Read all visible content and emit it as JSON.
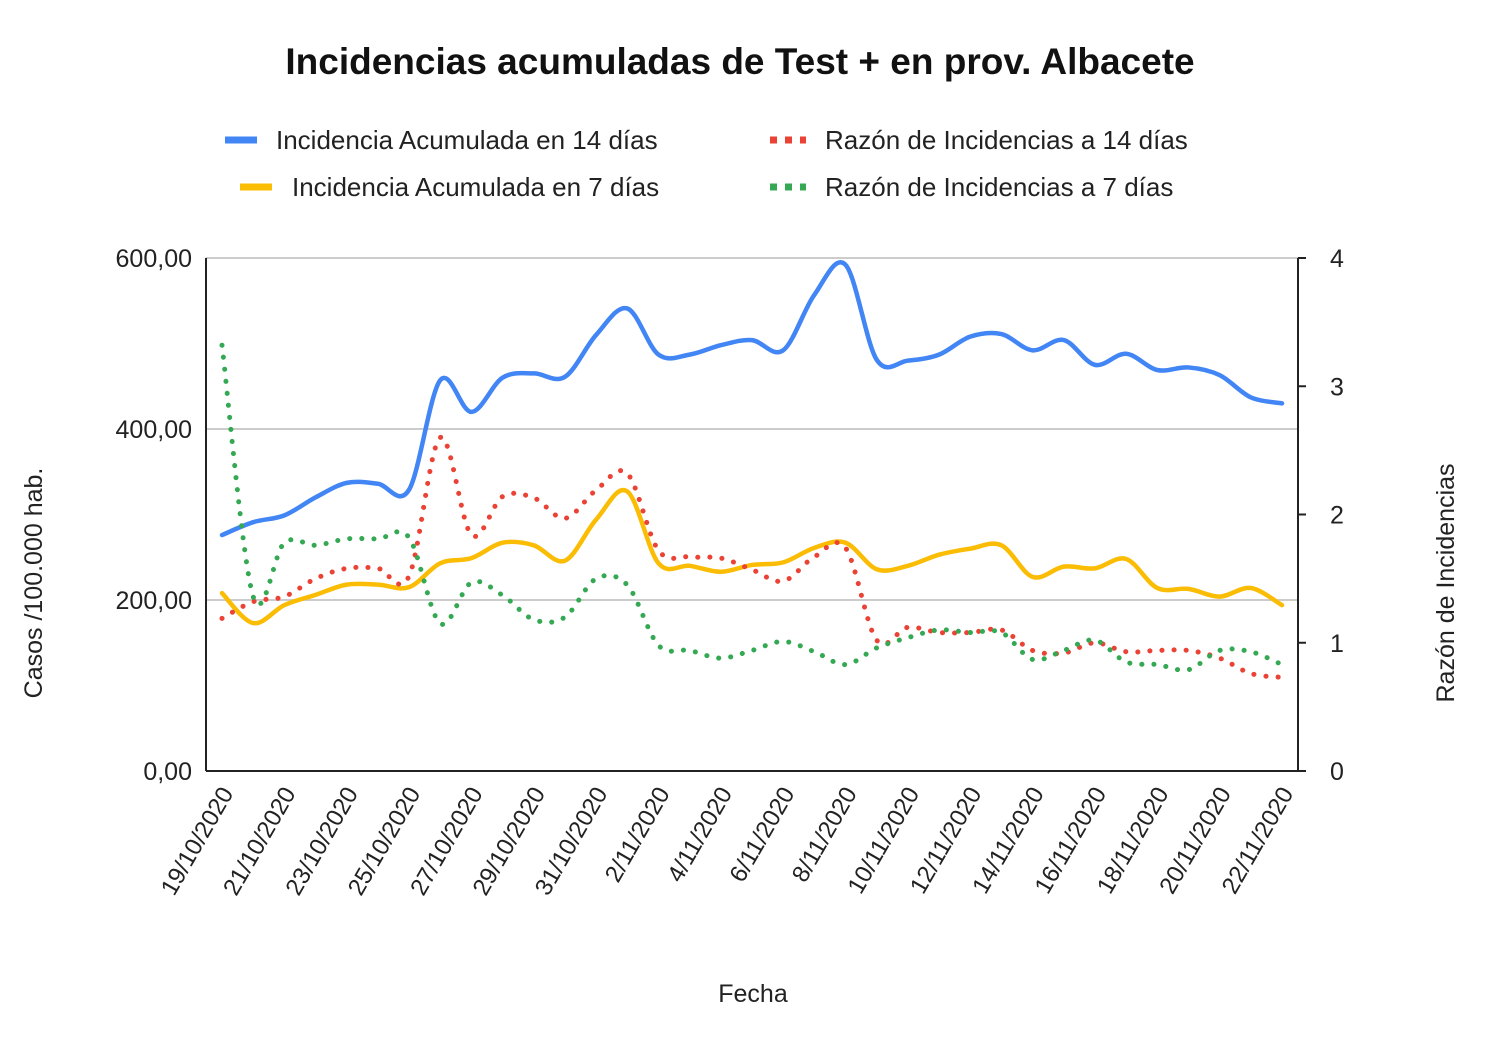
{
  "chart_data": {
    "type": "line",
    "title": "Incidencias acumuladas de Test + en prov. Albacete",
    "xlabel": "Fecha",
    "ylabel": "Casos /100.000 hab.",
    "ylabel_right": "Razón de Incidencias",
    "ylim": [
      0,
      600
    ],
    "ylim_right": [
      0,
      4
    ],
    "yticks": [
      "0,00",
      "200,00",
      "400,00",
      "600,00"
    ],
    "yticks_right": [
      "0",
      "1",
      "2",
      "3",
      "4"
    ],
    "grid": true,
    "legend_position": "top",
    "x": [
      "19/10/2020",
      "20/10/2020",
      "21/10/2020",
      "22/10/2020",
      "23/10/2020",
      "24/10/2020",
      "25/10/2020",
      "26/10/2020",
      "27/10/2020",
      "28/10/2020",
      "29/10/2020",
      "30/10/2020",
      "31/10/2020",
      "1/11/2020",
      "2/11/2020",
      "3/11/2020",
      "4/11/2020",
      "5/11/2020",
      "6/11/2020",
      "7/11/2020",
      "8/11/2020",
      "9/11/2020",
      "10/11/2020",
      "11/11/2020",
      "12/11/2020",
      "13/11/2020",
      "14/11/2020",
      "15/11/2020",
      "16/11/2020",
      "17/11/2020",
      "18/11/2020",
      "19/11/2020",
      "20/11/2020",
      "21/11/2020",
      "22/11/2020"
    ],
    "xtick_labels": [
      "19/10/2020",
      "21/10/2020",
      "23/10/2020",
      "25/10/2020",
      "27/10/2020",
      "29/10/2020",
      "31/10/2020",
      "2/11/2020",
      "4/11/2020",
      "6/11/2020",
      "8/11/2020",
      "10/11/2020",
      "12/11/2020",
      "14/11/2020",
      "16/11/2020",
      "18/11/2020",
      "20/11/2020",
      "22/11/2020"
    ],
    "series": [
      {
        "name": "Incidencia Acumulada en 14 días",
        "axis": "left",
        "style": "solid",
        "color": "#4285f4",
        "values": [
          276,
          291,
          299,
          320,
          337,
          336,
          329,
          457,
          420,
          460,
          465,
          461,
          510,
          541,
          487,
          487,
          498,
          504,
          492,
          557,
          592,
          481,
          480,
          487,
          508,
          511,
          492,
          504,
          475,
          488,
          469,
          472,
          463,
          437,
          430
        ]
      },
      {
        "name": "Incidencia Acumulada en 7 días",
        "axis": "left",
        "style": "solid",
        "color": "#fbbc04",
        "values": [
          208,
          173,
          194,
          206,
          218,
          218,
          215,
          243,
          249,
          267,
          264,
          246,
          294,
          327,
          243,
          240,
          233,
          241,
          244,
          261,
          267,
          236,
          240,
          253,
          260,
          264,
          227,
          239,
          237,
          248,
          214,
          213,
          204,
          214,
          194
        ]
      },
      {
        "name": "Razón de Incidencias a 14 días",
        "axis": "right",
        "style": "dotted",
        "color": "#ea4335",
        "values": [
          1.19,
          1.32,
          1.36,
          1.5,
          1.58,
          1.58,
          1.52,
          2.6,
          1.84,
          2.14,
          2.13,
          1.97,
          2.19,
          2.32,
          1.72,
          1.67,
          1.66,
          1.57,
          1.48,
          1.67,
          1.74,
          1.02,
          1.12,
          1.08,
          1.08,
          1.1,
          0.94,
          0.92,
          1.0,
          0.93,
          0.94,
          0.94,
          0.88,
          0.76,
          0.73
        ]
      },
      {
        "name": "Razón de Incidencias a 7 días",
        "axis": "right",
        "style": "dotted",
        "color": "#34a853",
        "values": [
          3.32,
          1.36,
          1.78,
          1.76,
          1.81,
          1.81,
          1.82,
          1.15,
          1.47,
          1.37,
          1.18,
          1.2,
          1.5,
          1.45,
          0.98,
          0.94,
          0.88,
          0.94,
          1.01,
          0.93,
          0.83,
          0.96,
          1.04,
          1.1,
          1.08,
          1.08,
          0.87,
          0.94,
          1.02,
          0.85,
          0.83,
          0.79,
          0.94,
          0.93,
          0.83
        ]
      }
    ]
  }
}
